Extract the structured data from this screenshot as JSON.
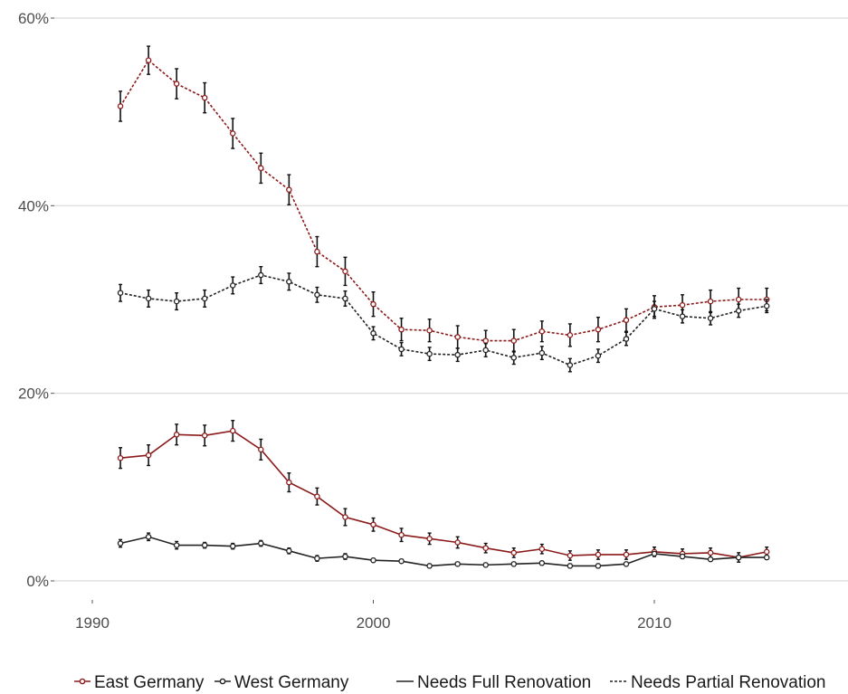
{
  "colors": {
    "east": "#8b1a1a",
    "west": "#222222",
    "grid": "#d9d9d9",
    "errorbar": "#111111"
  },
  "chart_data": {
    "type": "line",
    "title": "",
    "xlabel": "",
    "ylabel": "",
    "xlim": [
      1987.5,
      2017.5
    ],
    "ylim": [
      -0.02,
      0.6
    ],
    "x_ticks": [
      1990,
      2000,
      2010
    ],
    "y_ticks": [
      0,
      0.2,
      0.4,
      0.6
    ],
    "y_tick_labels": [
      "0%",
      "20%",
      "40%",
      "60%"
    ],
    "grid": "horizontal",
    "legend_position": "bottom",
    "legend": {
      "east": "East Germany",
      "west": "West Germany",
      "full": "Needs Full Renovation",
      "partial": "Needs Partial Renovation"
    },
    "x": [
      1991,
      1992,
      1993,
      1994,
      1995,
      1996,
      1997,
      1998,
      1999,
      2000,
      2001,
      2002,
      2003,
      2004,
      2005,
      2006,
      2007,
      2008,
      2009,
      2010,
      2011,
      2012,
      2013,
      2014
    ],
    "series": [
      {
        "name": "East Germany",
        "renovation": "Needs Partial Renovation",
        "color_key": "east",
        "dashed": true,
        "values": [
          0.506,
          0.555,
          0.53,
          0.515,
          0.477,
          0.44,
          0.417,
          0.351,
          0.33,
          0.295,
          0.268,
          0.267,
          0.26,
          0.256,
          0.256,
          0.266,
          0.262,
          0.268,
          0.278,
          0.292,
          0.294,
          0.298,
          0.3,
          0.3
        ],
        "error": [
          0.016,
          0.015,
          0.016,
          0.016,
          0.016,
          0.016,
          0.016,
          0.016,
          0.015,
          0.013,
          0.012,
          0.012,
          0.012,
          0.011,
          0.012,
          0.011,
          0.012,
          0.013,
          0.012,
          0.012,
          0.011,
          0.012,
          0.012,
          0.012
        ]
      },
      {
        "name": "West Germany",
        "renovation": "Needs Partial Renovation",
        "color_key": "west",
        "dashed": true,
        "values": [
          0.307,
          0.301,
          0.298,
          0.301,
          0.315,
          0.326,
          0.319,
          0.305,
          0.301,
          0.264,
          0.247,
          0.242,
          0.241,
          0.246,
          0.238,
          0.243,
          0.23,
          0.24,
          0.258,
          0.29,
          0.282,
          0.28,
          0.288,
          0.293
        ],
        "error": [
          0.009,
          0.009,
          0.009,
          0.009,
          0.009,
          0.009,
          0.009,
          0.008,
          0.008,
          0.007,
          0.007,
          0.007,
          0.007,
          0.007,
          0.007,
          0.007,
          0.007,
          0.007,
          0.007,
          0.008,
          0.007,
          0.007,
          0.007,
          0.007
        ]
      },
      {
        "name": "East Germany",
        "renovation": "Needs Full Renovation",
        "color_key": "east",
        "dashed": false,
        "values": [
          0.131,
          0.134,
          0.156,
          0.155,
          0.16,
          0.14,
          0.105,
          0.09,
          0.068,
          0.06,
          0.049,
          0.045,
          0.041,
          0.035,
          0.03,
          0.034,
          0.027,
          0.028,
          0.028,
          0.031,
          0.029,
          0.03,
          0.025,
          0.031
        ],
        "error": [
          0.011,
          0.011,
          0.011,
          0.011,
          0.011,
          0.011,
          0.01,
          0.009,
          0.009,
          0.007,
          0.007,
          0.006,
          0.006,
          0.005,
          0.005,
          0.005,
          0.005,
          0.005,
          0.005,
          0.005,
          0.005,
          0.005,
          0.005,
          0.005
        ]
      },
      {
        "name": "West Germany",
        "renovation": "Needs Full Renovation",
        "color_key": "west",
        "dashed": false,
        "values": [
          0.04,
          0.047,
          0.038,
          0.038,
          0.037,
          0.04,
          0.032,
          0.024,
          0.026,
          0.022,
          0.021,
          0.016,
          0.018,
          0.017,
          0.018,
          0.019,
          0.016,
          0.016,
          0.018,
          0.029,
          0.026,
          0.023,
          0.025,
          0.025
        ],
        "error": [
          0.004,
          0.004,
          0.004,
          0.003,
          0.003,
          0.003,
          0.003,
          0.003,
          0.003,
          0.002,
          0.002,
          0.002,
          0.002,
          0.002,
          0.002,
          0.002,
          0.002,
          0.002,
          0.002,
          0.002,
          0.002,
          0.002,
          0.002,
          0.002
        ]
      }
    ]
  }
}
